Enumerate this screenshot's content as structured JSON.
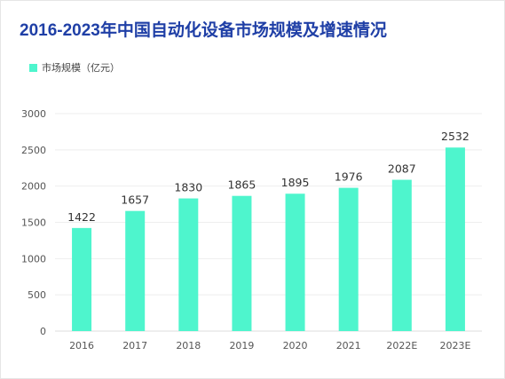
{
  "title": "2016-2023年中国自动化设备市场规模及增速情况",
  "legend": {
    "label": "市场规模（亿元）",
    "position": "top-left"
  },
  "colors": {
    "title": "#1f3fa6",
    "bar": "#4ef5cd",
    "gridline": "#eeeeee",
    "axis_text": "#555555",
    "value_text": "#333333"
  },
  "chart_data": {
    "type": "bar",
    "title": "2016-2023年中国自动化设备市场规模及增速情况",
    "xlabel": "",
    "ylabel": "",
    "categories": [
      "2016",
      "2017",
      "2018",
      "2019",
      "2020",
      "2021",
      "2022E",
      "2023E"
    ],
    "series": [
      {
        "name": "市场规模（亿元）",
        "values": [
          1422,
          1657,
          1830,
          1865,
          1895,
          1976,
          2087,
          2532
        ]
      }
    ],
    "ylim": [
      0,
      3000
    ],
    "yticks": [
      0,
      500,
      1000,
      1500,
      2000,
      2500,
      3000
    ],
    "grid": true,
    "legend": "top-left",
    "data_labels": true
  }
}
